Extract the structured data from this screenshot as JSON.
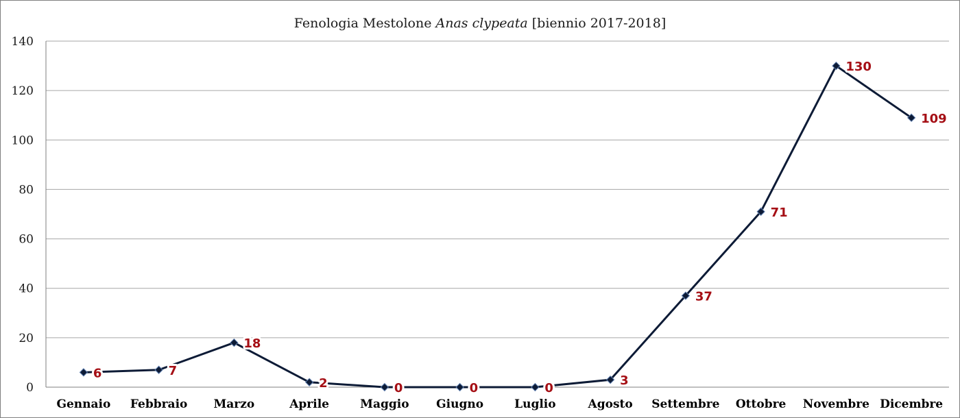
{
  "chart_data": {
    "type": "line",
    "title_parts": [
      "Fenologia Mestolone ",
      "Anas clypeata",
      " [biennio 2017-2018]"
    ],
    "categories": [
      "Gennaio",
      "Febbraio",
      "Marzo",
      "Aprile",
      "Maggio",
      "Giugno",
      "Luglio",
      "Agosto",
      "Settembre",
      "Ottobre",
      "Novembre",
      "Dicembre"
    ],
    "values": [
      6,
      7,
      18,
      2,
      0,
      0,
      0,
      3,
      37,
      71,
      130,
      109
    ],
    "ylim": [
      0,
      140
    ],
    "yticks": [
      0,
      20,
      40,
      60,
      80,
      100,
      120,
      140
    ],
    "grid": true,
    "legend": "none",
    "colors": {
      "line": "#0d1b36",
      "marker": "#0d1b36",
      "data_label": "#a50f15",
      "grid": "#a6a6a6"
    }
  }
}
